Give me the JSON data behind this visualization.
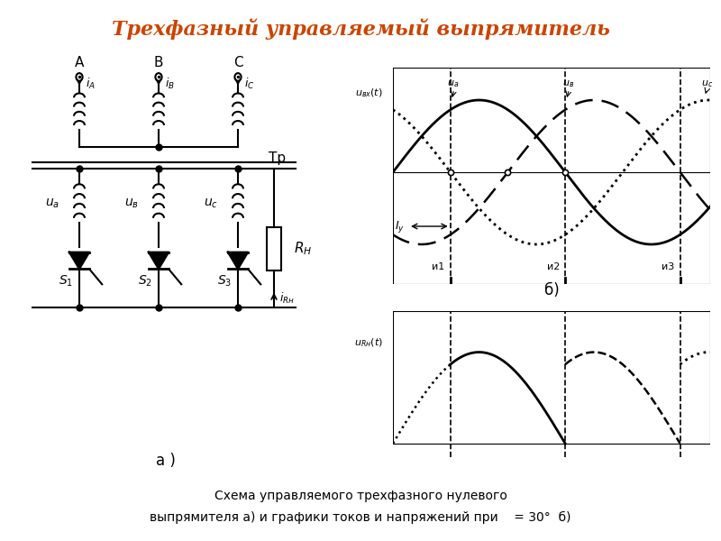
{
  "title": "Трехфазный управляемый выпрямитель",
  "title_color": "#cc4400",
  "title_fontsize": 16,
  "caption_line1": "Схема управляемого трехфазного нулевого",
  "caption_line2": "выпрямителя а) и графики токов и напряжений при    = 30°  б)",
  "bg_color": "#ffffff",
  "label_a": "а )",
  "label_b": "б)",
  "uvx_label": "$u_{вх}(t)$",
  "urh_label": "$u_{Rн}(t)$",
  "phase_labels_top": [
    "$u_а$",
    "$u_в$",
    "$u_с$"
  ],
  "interval_labels": [
    "и1",
    "и2",
    "и3"
  ],
  "Iy_label": "$I_у$",
  "Tr_label": "Тр",
  "RH_label": "$R_Н$",
  "iRH_label": "$i_{Rн}$"
}
